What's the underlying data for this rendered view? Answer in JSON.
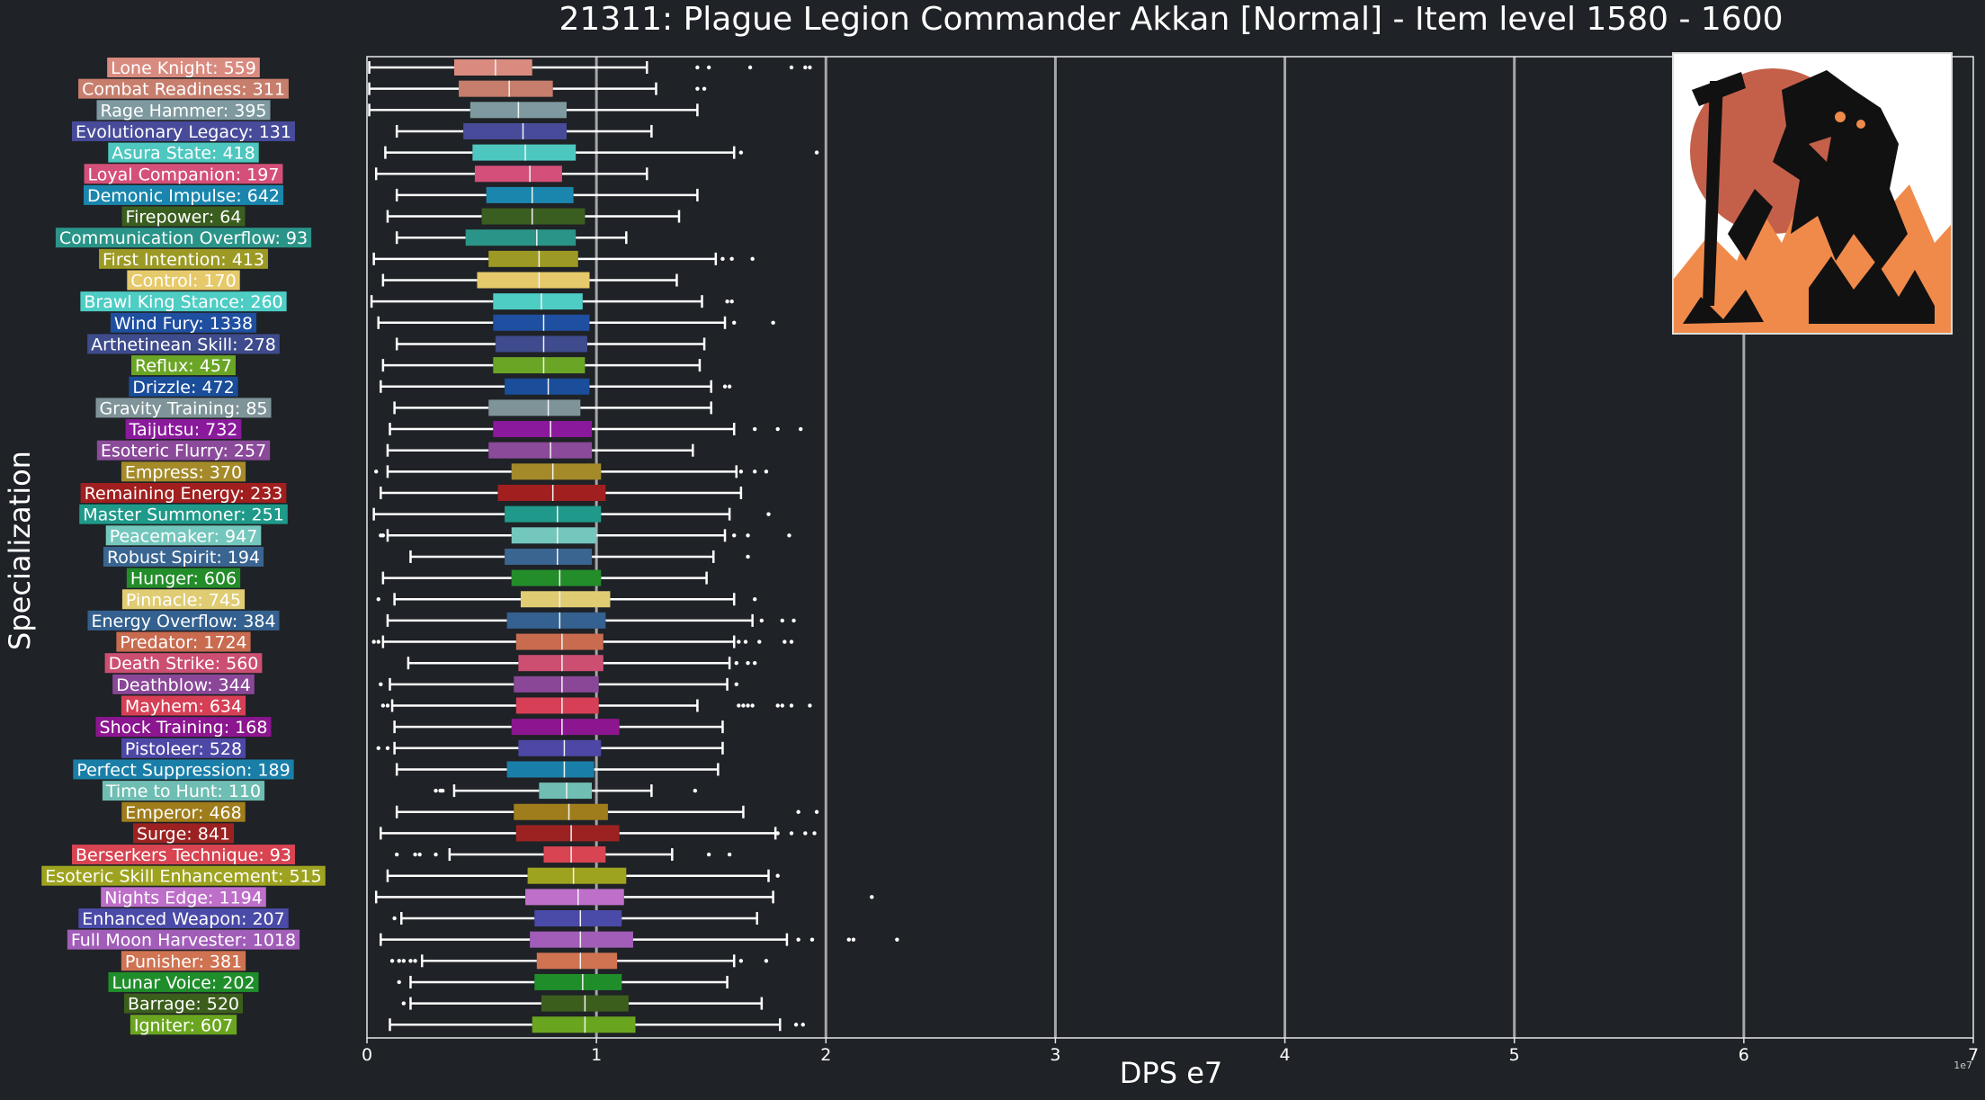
{
  "chart_data": {
    "type": "box",
    "title": "21311: Plague Legion Commander Akkan [Normal] - Item level 1580 - 1600",
    "xlabel": "DPS e7",
    "ylabel": "Specialization",
    "x_offset_label": "1e7",
    "xlim": [
      0,
      7
    ],
    "xticks": [
      0,
      1,
      2,
      3,
      4,
      5,
      6,
      7
    ],
    "tick_labels": [
      "0",
      "1",
      "2",
      "3",
      "4",
      "5",
      "6",
      "7"
    ],
    "grid": "vertical",
    "orientation": "horizontal",
    "series": [
      {
        "label": "Lone Knight: 559",
        "color": "#d98b80",
        "whislo": 0.01,
        "q1": 0.38,
        "med": 0.56,
        "q3": 0.72,
        "whishi": 1.22,
        "fliers": [
          1.44,
          1.49,
          1.67,
          1.85,
          1.91,
          1.93
        ]
      },
      {
        "label": "Combat Readiness: 311",
        "color": "#c77e6c",
        "whislo": 0.01,
        "q1": 0.4,
        "med": 0.62,
        "q3": 0.81,
        "whishi": 1.26,
        "fliers": [
          1.44,
          1.47
        ]
      },
      {
        "label": "Rage Hammer: 395",
        "color": "#7e9aa0",
        "whislo": 0.01,
        "q1": 0.45,
        "med": 0.66,
        "q3": 0.87,
        "whishi": 1.44,
        "fliers": []
      },
      {
        "label": "Evolutionary Legacy: 131",
        "color": "#474b9a",
        "whislo": 0.13,
        "q1": 0.42,
        "med": 0.68,
        "q3": 0.87,
        "whishi": 1.24,
        "fliers": []
      },
      {
        "label": "Asura State: 418",
        "color": "#4dc7bf",
        "whislo": 0.08,
        "q1": 0.46,
        "med": 0.69,
        "q3": 0.91,
        "whishi": 1.6,
        "fliers": [
          1.63,
          1.96
        ]
      },
      {
        "label": "Loyal Companion: 197",
        "color": "#d4507a",
        "whislo": 0.04,
        "q1": 0.47,
        "med": 0.71,
        "q3": 0.85,
        "whishi": 1.22,
        "fliers": []
      },
      {
        "label": "Demonic Impulse: 642",
        "color": "#1a86ad",
        "whislo": 0.13,
        "q1": 0.52,
        "med": 0.72,
        "q3": 0.9,
        "whishi": 1.44,
        "fliers": []
      },
      {
        "label": "Firepower: 64",
        "color": "#3a5e1f",
        "whislo": 0.09,
        "q1": 0.5,
        "med": 0.72,
        "q3": 0.95,
        "whishi": 1.36,
        "fliers": []
      },
      {
        "label": "Communication Overflow: 93",
        "color": "#2a9488",
        "whislo": 0.13,
        "q1": 0.43,
        "med": 0.74,
        "q3": 0.91,
        "whishi": 1.13,
        "fliers": []
      },
      {
        "label": "First Intention: 413",
        "color": "#9c9a24",
        "whislo": 0.03,
        "q1": 0.53,
        "med": 0.75,
        "q3": 0.92,
        "whishi": 1.52,
        "fliers": [
          1.55,
          1.59,
          1.68
        ]
      },
      {
        "label": "Control: 170",
        "color": "#e6c96a",
        "whislo": 0.07,
        "q1": 0.48,
        "med": 0.75,
        "q3": 0.97,
        "whishi": 1.35,
        "fliers": []
      },
      {
        "label": "Brawl King Stance: 260",
        "color": "#4ecdc4",
        "whislo": 0.02,
        "q1": 0.55,
        "med": 0.76,
        "q3": 0.94,
        "whishi": 1.46,
        "fliers": [
          1.57,
          1.59
        ]
      },
      {
        "label": "Wind Fury: 1338",
        "color": "#1f4fa0",
        "whislo": 0.05,
        "q1": 0.55,
        "med": 0.77,
        "q3": 0.97,
        "whishi": 1.56,
        "fliers": [
          1.6,
          1.77
        ]
      },
      {
        "label": "Arthetinean Skill: 278",
        "color": "#3e4b8c",
        "whislo": 0.13,
        "q1": 0.56,
        "med": 0.77,
        "q3": 0.96,
        "whishi": 1.47,
        "fliers": []
      },
      {
        "label": "Reflux: 457",
        "color": "#6aa525",
        "whislo": 0.07,
        "q1": 0.55,
        "med": 0.77,
        "q3": 0.95,
        "whishi": 1.45,
        "fliers": []
      },
      {
        "label": "Drizzle: 472",
        "color": "#1a4d9a",
        "whislo": 0.06,
        "q1": 0.6,
        "med": 0.79,
        "q3": 0.97,
        "whishi": 1.5,
        "fliers": [
          1.56,
          1.58
        ]
      },
      {
        "label": "Gravity Training: 85",
        "color": "#7f9499",
        "whislo": 0.12,
        "q1": 0.53,
        "med": 0.79,
        "q3": 0.93,
        "whishi": 1.5,
        "fliers": []
      },
      {
        "label": "Taijutsu: 732",
        "color": "#8a1a9b",
        "whislo": 0.1,
        "q1": 0.55,
        "med": 0.8,
        "q3": 0.98,
        "whishi": 1.6,
        "fliers": [
          1.69,
          1.79,
          1.89
        ]
      },
      {
        "label": "Esoteric Flurry: 257",
        "color": "#8b4a9a",
        "whislo": 0.09,
        "q1": 0.53,
        "med": 0.8,
        "q3": 0.98,
        "whishi": 1.42,
        "fliers": []
      },
      {
        "label": "Empress: 370",
        "color": "#a58a2a",
        "whislo": 0.09,
        "q1": 0.63,
        "med": 0.81,
        "q3": 1.02,
        "whishi": 1.61,
        "fliers": [
          0.04,
          1.63,
          1.69,
          1.74
        ]
      },
      {
        "label": "Remaining Energy: 233",
        "color": "#a11f1f",
        "whislo": 0.06,
        "q1": 0.57,
        "med": 0.81,
        "q3": 1.04,
        "whishi": 1.63,
        "fliers": []
      },
      {
        "label": "Master Summoner: 251",
        "color": "#1f9a8a",
        "whislo": 0.03,
        "q1": 0.6,
        "med": 0.83,
        "q3": 1.02,
        "whishi": 1.58,
        "fliers": [
          1.75
        ]
      },
      {
        "label": "Peacemaker: 947",
        "color": "#74c7bd",
        "whislo": 0.09,
        "q1": 0.63,
        "med": 0.83,
        "q3": 1.0,
        "whishi": 1.56,
        "fliers": [
          0.06,
          0.07,
          1.6,
          1.66,
          1.84
        ]
      },
      {
        "label": "Robust Spirit: 194",
        "color": "#3a6591",
        "whislo": 0.19,
        "q1": 0.6,
        "med": 0.83,
        "q3": 0.98,
        "whishi": 1.51,
        "fliers": [
          1.66
        ]
      },
      {
        "label": "Hunger: 606",
        "color": "#238d2a",
        "whislo": 0.07,
        "q1": 0.63,
        "med": 0.84,
        "q3": 1.02,
        "whishi": 1.48,
        "fliers": []
      },
      {
        "label": "Pinnacle: 745",
        "color": "#e0cc73",
        "whislo": 0.12,
        "q1": 0.67,
        "med": 0.84,
        "q3": 1.06,
        "whishi": 1.6,
        "fliers": [
          0.05,
          1.69
        ]
      },
      {
        "label": "Energy Overflow: 384",
        "color": "#34618f",
        "whislo": 0.09,
        "q1": 0.61,
        "med": 0.84,
        "q3": 1.04,
        "whishi": 1.68,
        "fliers": [
          1.72,
          1.81,
          1.86
        ]
      },
      {
        "label": "Predator: 1724",
        "color": "#c96b4f",
        "whislo": 0.07,
        "q1": 0.65,
        "med": 0.85,
        "q3": 1.03,
        "whishi": 1.6,
        "fliers": [
          0.03,
          0.05,
          1.62,
          1.65,
          1.71,
          1.82,
          1.85
        ]
      },
      {
        "label": "Death Strike: 560",
        "color": "#cc4f72",
        "whislo": 0.18,
        "q1": 0.66,
        "med": 0.85,
        "q3": 1.03,
        "whishi": 1.58,
        "fliers": [
          1.61,
          1.66,
          1.69
        ]
      },
      {
        "label": "Deathblow: 344",
        "color": "#8a4797",
        "whislo": 0.1,
        "q1": 0.64,
        "med": 0.85,
        "q3": 1.01,
        "whishi": 1.57,
        "fliers": [
          0.06,
          1.61
        ]
      },
      {
        "label": "Mayhem: 634",
        "color": "#d63f55",
        "whislo": 0.11,
        "q1": 0.65,
        "med": 0.85,
        "q3": 1.01,
        "whishi": 1.44,
        "fliers": [
          0.07,
          0.09,
          1.62,
          1.64,
          1.66,
          1.68,
          1.79,
          1.81,
          1.85,
          1.93
        ]
      },
      {
        "label": "Shock Training: 168",
        "color": "#8c168f",
        "whislo": 0.12,
        "q1": 0.63,
        "med": 0.85,
        "q3": 1.1,
        "whishi": 1.55,
        "fliers": []
      },
      {
        "label": "Pistoleer: 528",
        "color": "#4d47a6",
        "whislo": 0.12,
        "q1": 0.66,
        "med": 0.86,
        "q3": 1.02,
        "whishi": 1.55,
        "fliers": [
          0.05,
          0.09
        ]
      },
      {
        "label": "Perfect Suppression: 189",
        "color": "#1a7fa8",
        "whislo": 0.13,
        "q1": 0.61,
        "med": 0.86,
        "q3": 0.99,
        "whishi": 1.53,
        "fliers": []
      },
      {
        "label": "Time to Hunt: 110",
        "color": "#6fbdb3",
        "whislo": 0.38,
        "q1": 0.75,
        "med": 0.87,
        "q3": 0.98,
        "whishi": 1.24,
        "fliers": [
          0.3,
          0.32,
          0.33,
          1.43
        ]
      },
      {
        "label": "Emperor: 468",
        "color": "#a07d1c",
        "whislo": 0.13,
        "q1": 0.64,
        "med": 0.88,
        "q3": 1.05,
        "whishi": 1.64,
        "fliers": [
          1.88,
          1.96
        ]
      },
      {
        "label": "Surge: 841",
        "color": "#9c2222",
        "whislo": 0.06,
        "q1": 0.65,
        "med": 0.89,
        "q3": 1.1,
        "whishi": 1.78,
        "fliers": [
          1.79,
          1.85,
          1.91,
          1.95
        ]
      },
      {
        "label": "Berserkers Technique: 93",
        "color": "#d84452",
        "whislo": 0.36,
        "q1": 0.77,
        "med": 0.89,
        "q3": 1.04,
        "whishi": 1.33,
        "fliers": [
          0.13,
          0.21,
          0.23,
          0.3,
          1.49,
          1.58
        ]
      },
      {
        "label": "Esoteric Skill Enhancement: 515",
        "color": "#9da31f",
        "whislo": 0.09,
        "q1": 0.7,
        "med": 0.9,
        "q3": 1.13,
        "whishi": 1.75,
        "fliers": [
          1.79
        ]
      },
      {
        "label": "Nights Edge: 1194",
        "color": "#be6fc9",
        "whislo": 0.04,
        "q1": 0.69,
        "med": 0.92,
        "q3": 1.12,
        "whishi": 1.77,
        "fliers": [
          2.2
        ]
      },
      {
        "label": "Enhanced Weapon: 207",
        "color": "#4a4aa8",
        "whislo": 0.15,
        "q1": 0.73,
        "med": 0.93,
        "q3": 1.11,
        "whishi": 1.7,
        "fliers": [
          0.12
        ]
      },
      {
        "label": "Full Moon Harvester: 1018",
        "color": "#a15db8",
        "whislo": 0.06,
        "q1": 0.71,
        "med": 0.93,
        "q3": 1.16,
        "whishi": 1.83,
        "fliers": [
          1.88,
          1.94,
          2.1,
          2.12,
          2.31
        ]
      },
      {
        "label": "Punisher: 381",
        "color": "#cf7352",
        "whislo": 0.24,
        "q1": 0.74,
        "med": 0.93,
        "q3": 1.09,
        "whishi": 1.6,
        "fliers": [
          0.11,
          0.14,
          0.16,
          0.19,
          0.21,
          1.63,
          1.74
        ]
      },
      {
        "label": "Lunar Voice: 202",
        "color": "#1f8e2a",
        "whislo": 0.19,
        "q1": 0.73,
        "med": 0.94,
        "q3": 1.11,
        "whishi": 1.57,
        "fliers": [
          0.14
        ]
      },
      {
        "label": "Barrage: 520",
        "color": "#3c5e1c",
        "whislo": 0.19,
        "q1": 0.76,
        "med": 0.95,
        "q3": 1.14,
        "whishi": 1.72,
        "fliers": [
          0.16
        ]
      },
      {
        "label": "Igniter: 607",
        "color": "#6aa51f",
        "whislo": 0.1,
        "q1": 0.72,
        "med": 0.95,
        "q3": 1.17,
        "whishi": 1.8,
        "fliers": [
          1.87,
          1.9
        ]
      }
    ]
  }
}
